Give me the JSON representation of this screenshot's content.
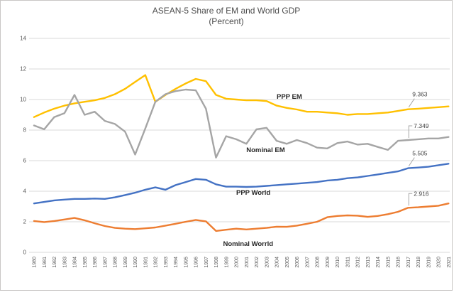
{
  "title": {
    "line1": "ASEAN-5 Share of EM and World GDP",
    "line2": "(Percent)"
  },
  "colors": {
    "ppp_em": "#FFC000",
    "nominal_em": "#A5A5A5",
    "ppp_world": "#4472C4",
    "nominal_world": "#ED7D31",
    "gridline": "#D9D9D9",
    "axis_text": "#595959",
    "series_label_text": "#262626",
    "point_label_text": "#404040",
    "leader_line": "#A6A6A6",
    "title_text": "#4d4d4d"
  },
  "chart_data": {
    "type": "line",
    "title": "ASEAN-5 Share of EM and World GDP",
    "subtitle": "(Percent)",
    "xlabel": "",
    "ylabel": "",
    "ylim": [
      0,
      14
    ],
    "yticks": [
      0,
      2,
      4,
      6,
      8,
      10,
      12,
      14
    ],
    "grid": "horizontal",
    "legend": "none",
    "x": [
      1980,
      1981,
      1982,
      1983,
      1984,
      1985,
      1986,
      1987,
      1988,
      1989,
      1990,
      1991,
      1992,
      1993,
      1994,
      1995,
      1996,
      1997,
      1998,
      1999,
      2000,
      2001,
      2002,
      2003,
      2004,
      2005,
      2006,
      2007,
      2008,
      2009,
      2010,
      2011,
      2012,
      2013,
      2014,
      2015,
      2016,
      2017,
      2018,
      2019,
      2020,
      2021
    ],
    "series": [
      {
        "name": "PPP EM",
        "color": "#FFC000",
        "values": [
          8.85,
          9.15,
          9.4,
          9.6,
          9.75,
          9.85,
          9.95,
          10.1,
          10.35,
          10.7,
          11.15,
          11.6,
          9.85,
          10.3,
          10.7,
          11.05,
          11.35,
          11.2,
          10.3,
          10.05,
          10.0,
          9.95,
          9.95,
          9.9,
          9.6,
          9.45,
          9.35,
          9.2,
          9.2,
          9.15,
          9.1,
          9.0,
          9.05,
          9.05,
          9.1,
          9.15,
          9.25,
          9.363,
          9.4,
          9.45,
          9.5,
          9.55
        ]
      },
      {
        "name": "Nominal EM",
        "color": "#A5A5A5",
        "values": [
          8.3,
          8.05,
          8.85,
          9.1,
          10.3,
          9.0,
          9.2,
          8.6,
          8.4,
          7.9,
          6.4,
          8.1,
          9.85,
          10.35,
          10.55,
          10.65,
          10.6,
          9.4,
          6.2,
          7.6,
          7.4,
          7.1,
          8.05,
          8.15,
          7.3,
          7.1,
          7.35,
          7.15,
          6.85,
          6.8,
          7.15,
          7.25,
          7.05,
          7.1,
          6.9,
          6.7,
          7.3,
          7.349,
          7.4,
          7.45,
          7.45,
          7.55
        ]
      },
      {
        "name": "PPP World",
        "color": "#4472C4",
        "values": [
          3.2,
          3.3,
          3.4,
          3.45,
          3.5,
          3.5,
          3.52,
          3.5,
          3.6,
          3.75,
          3.9,
          4.1,
          4.25,
          4.1,
          4.4,
          4.6,
          4.8,
          4.75,
          4.45,
          4.3,
          4.3,
          4.28,
          4.3,
          4.35,
          4.4,
          4.45,
          4.5,
          4.55,
          4.6,
          4.7,
          4.75,
          4.85,
          4.9,
          5.0,
          5.1,
          5.2,
          5.3,
          5.505,
          5.55,
          5.6,
          5.7,
          5.8
        ]
      },
      {
        "name": "Nominal World",
        "color": "#ED7D31",
        "values": [
          2.05,
          1.98,
          2.05,
          2.15,
          2.25,
          2.1,
          1.9,
          1.72,
          1.6,
          1.55,
          1.52,
          1.57,
          1.63,
          1.75,
          1.87,
          2.0,
          2.12,
          2.03,
          1.4,
          1.48,
          1.55,
          1.5,
          1.55,
          1.6,
          1.68,
          1.67,
          1.75,
          1.87,
          2.0,
          2.3,
          2.38,
          2.42,
          2.4,
          2.32,
          2.38,
          2.5,
          2.65,
          2.916,
          2.95,
          3.0,
          3.05,
          3.2
        ]
      }
    ],
    "series_labels": [
      {
        "text": "PPP EM",
        "year": 2004,
        "value": 10.05
      },
      {
        "text": "Nominal EM",
        "year": 2001,
        "value": 6.56
      },
      {
        "text": "PPP  World",
        "year": 2000,
        "value": 3.77
      },
      {
        "text": "Nominal Worrld",
        "year": 1998.7,
        "value": 0.42
      }
    ],
    "point_labels": [
      {
        "text": "9.363",
        "series": "PPP EM",
        "year": 2017,
        "leader": "diagonal"
      },
      {
        "text": "7.349",
        "series": "Nominal EM",
        "year": 2017,
        "leader": "bracket"
      },
      {
        "text": "5.505",
        "series": "PPP World",
        "year": 2017,
        "leader": "diagonal"
      },
      {
        "text": "2.916",
        "series": "Nominal World",
        "year": 2017,
        "leader": "bracket"
      }
    ]
  }
}
